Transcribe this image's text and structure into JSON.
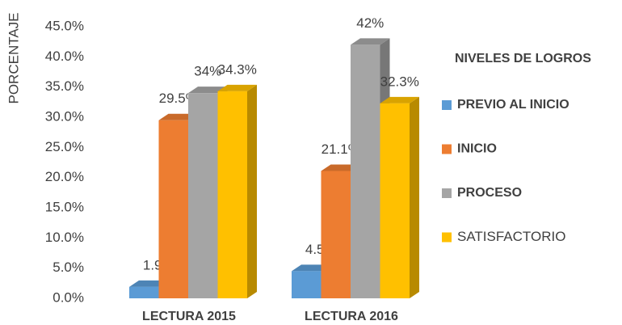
{
  "chart_data": {
    "type": "bar3d",
    "y_label": "PORCENTAJE",
    "legend_title": "NIVELES DE LOGROS",
    "categories": [
      "LECTURA 2015",
      "LECTURA 2016"
    ],
    "ylim": [
      0,
      45
    ],
    "yticks": [
      {
        "value": 0,
        "label": "0.0%"
      },
      {
        "value": 5,
        "label": "5.0%"
      },
      {
        "value": 10,
        "label": "10.0%"
      },
      {
        "value": 15,
        "label": "15.0%"
      },
      {
        "value": 20,
        "label": "20.0%"
      },
      {
        "value": 25,
        "label": "25.0%"
      },
      {
        "value": 30,
        "label": "30.0%"
      },
      {
        "value": 35,
        "label": "35.0%"
      },
      {
        "value": 40,
        "label": "40.0%"
      },
      {
        "value": 45,
        "label": "45.0%"
      }
    ],
    "series": [
      {
        "name": "PREVIO AL INICIO",
        "color": "#5b9bd5",
        "values": [
          1.9,
          4.5
        ],
        "value_labels": [
          "1.9%",
          "4.5%"
        ]
      },
      {
        "name": "INICIO",
        "color": "#ed7d31",
        "values": [
          29.5,
          21.1
        ],
        "value_labels": [
          "29.5%",
          "21.1%"
        ]
      },
      {
        "name": "PROCESO",
        "color": "#a5a5a5",
        "values": [
          34,
          42
        ],
        "value_labels": [
          "34%",
          "42%"
        ]
      },
      {
        "name": "SATISFACTORIO",
        "color": "#ffc000",
        "values": [
          34.3,
          32.3
        ],
        "value_labels": [
          "34.3%",
          "32.3%"
        ]
      }
    ]
  }
}
